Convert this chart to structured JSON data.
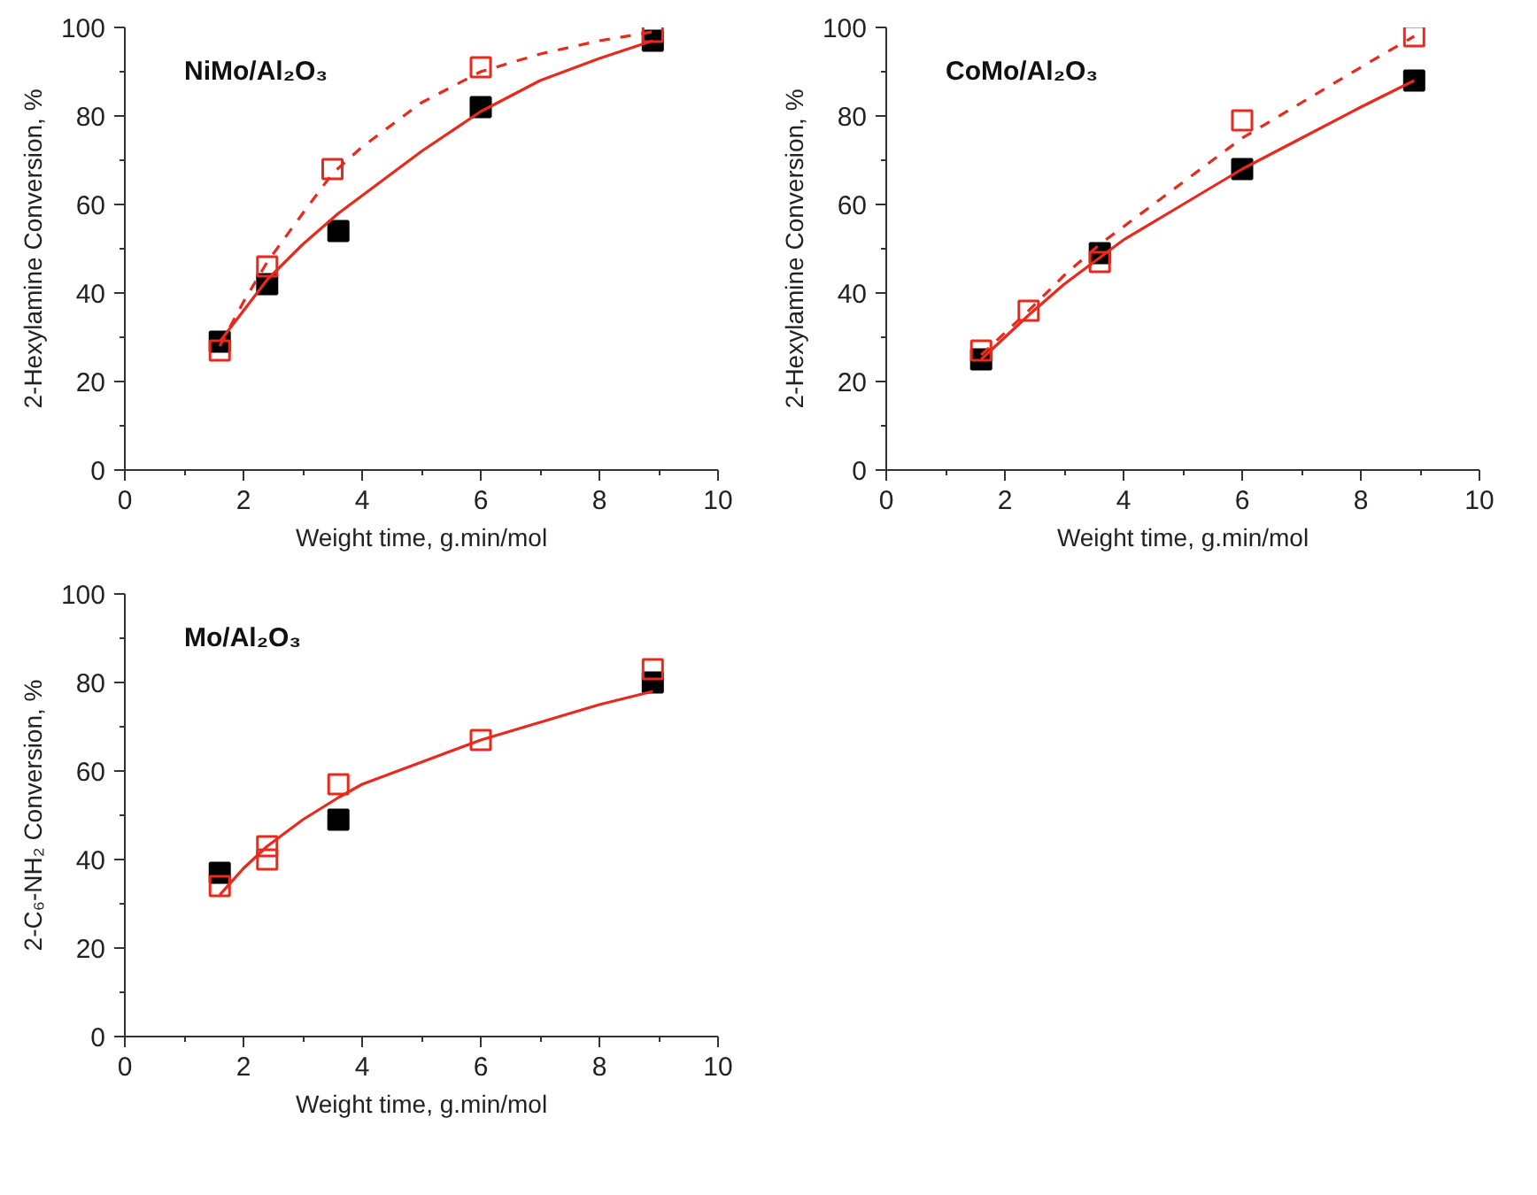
{
  "chart_data": [
    {
      "type": "scatter",
      "annotations": [
        "NiMo/Al₂O₃"
      ],
      "xlabel": "Weight time, g.min/mol",
      "ylabel": "2-Hexylamine Conversion, %",
      "xlim": [
        0,
        10
      ],
      "ylim": [
        0,
        100
      ],
      "xticks": [
        0,
        2,
        4,
        6,
        8,
        10
      ],
      "yticks": [
        0,
        20,
        40,
        60,
        80,
        100
      ],
      "grid": false,
      "marker": "square",
      "series": [
        {
          "color": "#000000",
          "x": [
            1.6,
            2.4,
            3.6,
            6.0,
            8.9
          ],
          "values": [
            29,
            42,
            54,
            82,
            97
          ]
        },
        {
          "color": "#e8291c",
          "x": [
            1.6,
            2.4,
            3.5,
            6.0,
            8.9
          ],
          "values": [
            27,
            46,
            68,
            91,
            99
          ]
        },
        {
          "type": "line",
          "color": "#e8291c",
          "line_style": "solid",
          "marker": "none",
          "x": [
            1.6,
            2,
            2.4,
            3,
            3.6,
            4,
            5,
            6,
            7,
            8,
            8.9
          ],
          "values": [
            29,
            36,
            43,
            51,
            58,
            62,
            72,
            81,
            88,
            93,
            97
          ]
        },
        {
          "type": "line",
          "color": "#e8291c",
          "line_style": "dashed",
          "marker": "none",
          "x": [
            1.6,
            2,
            2.4,
            3,
            3.5,
            4,
            5,
            6,
            7,
            8,
            8.9
          ],
          "values": [
            28,
            38,
            47,
            58,
            67,
            73,
            83,
            90,
            94,
            97,
            99
          ]
        }
      ]
    },
    {
      "type": "scatter",
      "annotations": [
        "CoMo/Al₂O₃"
      ],
      "xlabel": "Weight time, g.min/mol",
      "ylabel": "2-Hexylamine Conversion, %",
      "xlim": [
        0,
        10
      ],
      "ylim": [
        0,
        100
      ],
      "xticks": [
        0,
        2,
        4,
        6,
        8,
        10
      ],
      "yticks": [
        0,
        20,
        40,
        60,
        80,
        100
      ],
      "grid": false,
      "marker": "square",
      "series": [
        {
          "color": "#000000",
          "x": [
            1.6,
            3.6,
            6.0,
            8.9
          ],
          "values": [
            25,
            49,
            68,
            88
          ]
        },
        {
          "color": "#e8291c",
          "x": [
            1.6,
            2.4,
            3.6,
            6.0,
            8.9
          ],
          "values": [
            27,
            36,
            47,
            79,
            98
          ]
        },
        {
          "type": "line",
          "color": "#e8291c",
          "line_style": "solid",
          "marker": "none",
          "x": [
            1.6,
            2.4,
            3,
            3.6,
            4,
            5,
            6,
            7,
            8,
            8.9
          ],
          "values": [
            25,
            35,
            42,
            48,
            52,
            60,
            68,
            75,
            82,
            88
          ]
        },
        {
          "type": "line",
          "color": "#e8291c",
          "line_style": "dashed",
          "marker": "none",
          "x": [
            1.6,
            2.4,
            3,
            3.6,
            4,
            5,
            6,
            7,
            8,
            8.9
          ],
          "values": [
            26,
            36,
            44,
            51,
            55,
            65,
            75,
            83,
            91,
            98
          ]
        }
      ]
    },
    {
      "type": "scatter",
      "annotations": [
        "Mo/Al₂O₃"
      ],
      "xlabel": "Weight time, g.min/mol",
      "ylabel": "2-C₆-NH₂ Conversion, %",
      "xlim": [
        0,
        10
      ],
      "ylim": [
        0,
        100
      ],
      "xticks": [
        0,
        2,
        4,
        6,
        8,
        10
      ],
      "yticks": [
        0,
        20,
        40,
        60,
        80,
        100
      ],
      "grid": false,
      "marker": "square",
      "series": [
        {
          "color": "#000000",
          "x": [
            1.6,
            3.6,
            8.9
          ],
          "values": [
            37,
            49,
            80
          ]
        },
        {
          "color": "#e8291c",
          "x": [
            1.6,
            2.4,
            2.4,
            3.6,
            6.0,
            8.9
          ],
          "values": [
            34,
            40,
            43,
            57,
            67,
            83
          ]
        },
        {
          "type": "line",
          "color": "#e8291c",
          "line_style": "solid",
          "marker": "none",
          "x": [
            1.6,
            2,
            2.4,
            3,
            3.6,
            4,
            5,
            6,
            7,
            8,
            8.9
          ],
          "values": [
            32,
            38,
            43,
            49,
            54,
            57,
            62,
            67,
            71,
            75,
            78
          ]
        }
      ]
    }
  ]
}
